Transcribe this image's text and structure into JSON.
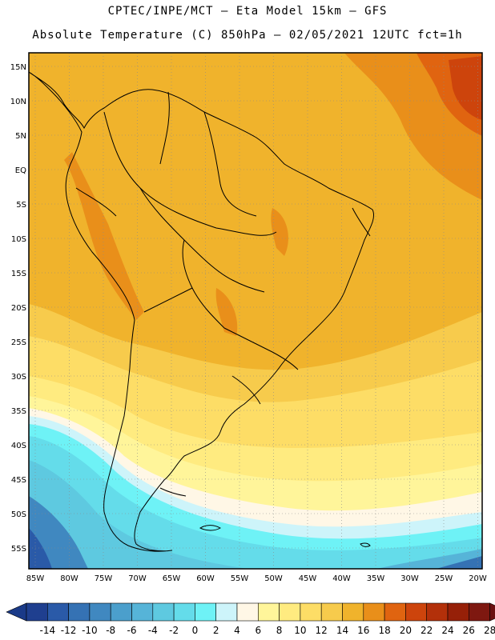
{
  "header": {
    "line1": "CPTEC/INPE/MCT –  Eta Model 15km – GFS",
    "line2": "Absolute Temperature (C) 850hPa – 02/05/2021 12UTC fct=1h"
  },
  "axes": {
    "lat_labels": [
      "15N",
      "10N",
      "5N",
      "EQ",
      "5S",
      "10S",
      "15S",
      "20S",
      "25S",
      "30S",
      "35S",
      "40S",
      "45S",
      "50S",
      "55S"
    ],
    "lon_labels": [
      "85W",
      "80W",
      "75W",
      "70W",
      "65W",
      "60W",
      "55W",
      "50W",
      "45W",
      "40W",
      "35W",
      "30W",
      "25W",
      "20W"
    ]
  },
  "colorbar": {
    "labels": [
      "-14",
      "-12",
      "-10",
      "-8",
      "-6",
      "-4",
      "-2",
      "0",
      "2",
      "4",
      "6",
      "8",
      "10",
      "12",
      "14",
      "16",
      "18",
      "20",
      "22",
      "24",
      "26",
      "28"
    ],
    "colors": [
      "#1f3f8f",
      "#2a5aa8",
      "#3572b4",
      "#4088c0",
      "#4b9fcc",
      "#56b4d8",
      "#5ec9e0",
      "#64dcea",
      "#6ef2f6",
      "#cdf4fa",
      "#fff7e6",
      "#fff59a",
      "#ffeb80",
      "#fddd66",
      "#f7cb4c",
      "#f0b32c",
      "#e98f1a",
      "#e06410",
      "#cd440c",
      "#b3300a",
      "#962008",
      "#7e1810"
    ]
  }
}
